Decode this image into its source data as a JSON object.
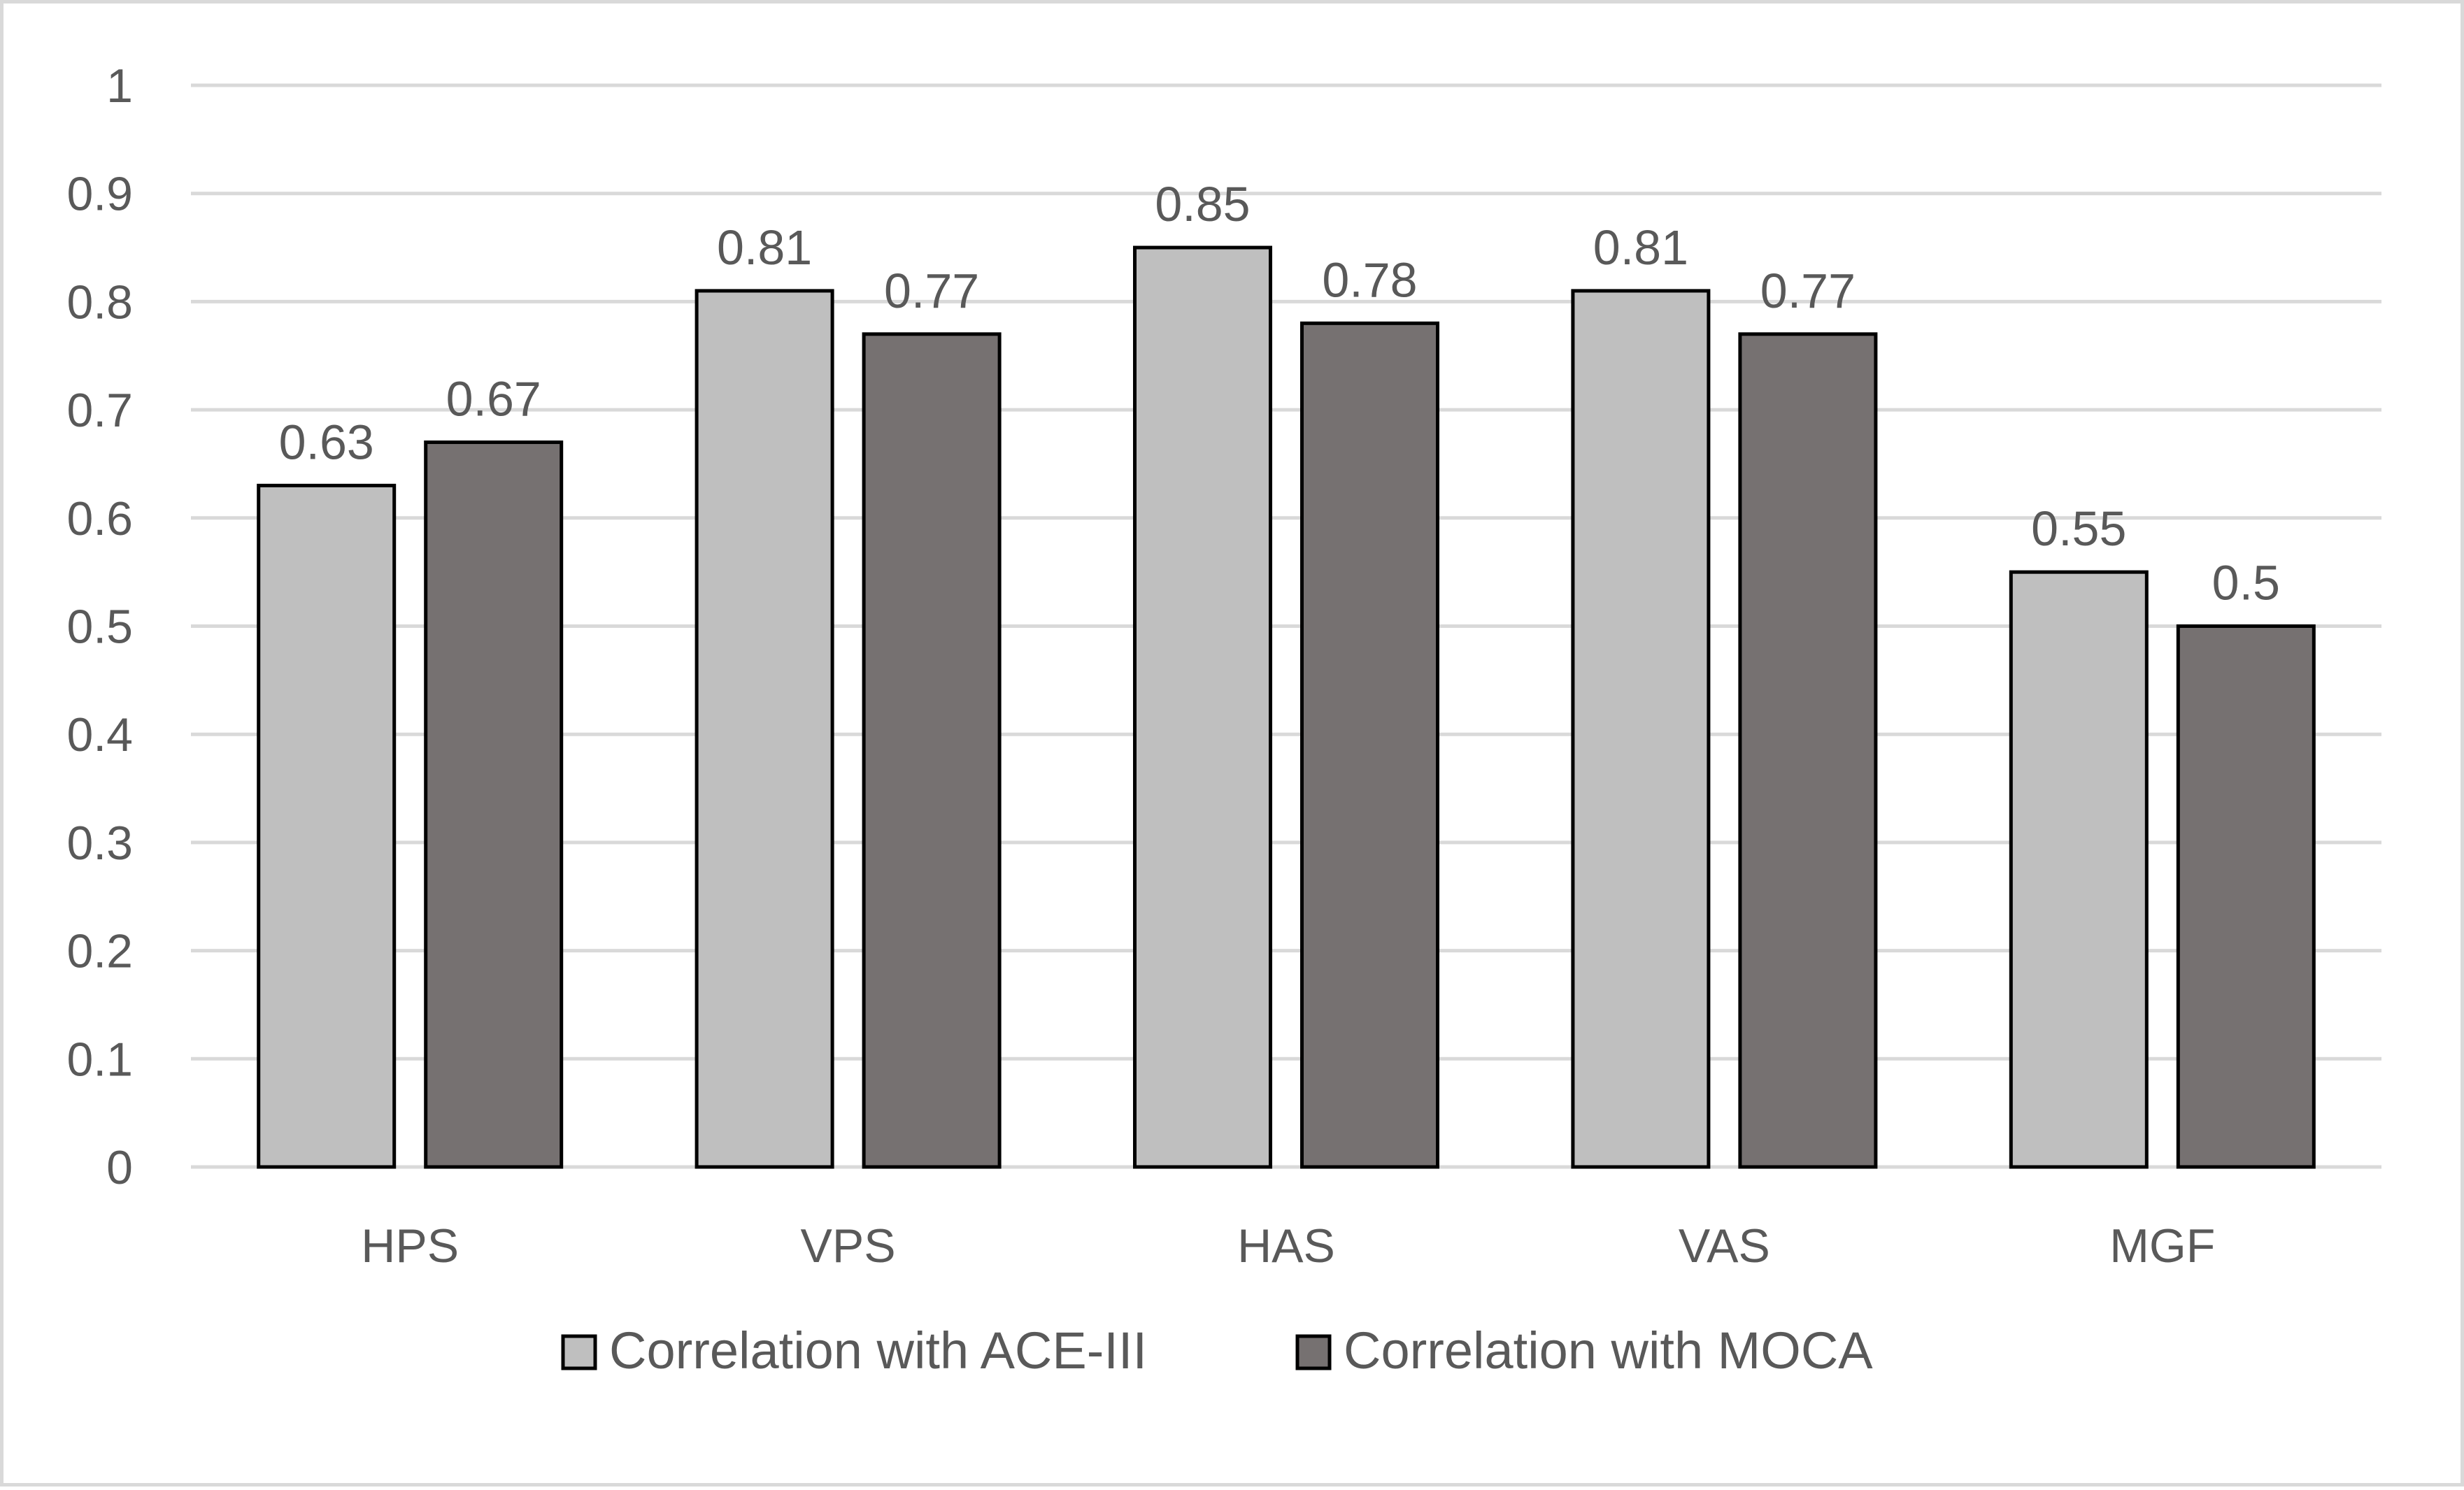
{
  "chart_data": {
    "type": "bar",
    "title": "",
    "xlabel": "",
    "ylabel": "",
    "categories": [
      "HPS",
      "VPS",
      "HAS",
      "VAS",
      "MGF"
    ],
    "series": [
      {
        "name": "Correlation with ACE-III",
        "values": [
          0.63,
          0.81,
          0.85,
          0.81,
          0.55
        ],
        "color": "#bfbfbf"
      },
      {
        "name": "Correlation with MOCA",
        "values": [
          0.67,
          0.77,
          0.78,
          0.77,
          0.5
        ],
        "color": "#767171"
      }
    ],
    "y_ticks": [
      "0",
      "0.1",
      "0.2",
      "0.3",
      "0.4",
      "0.5",
      "0.6",
      "0.7",
      "0.8",
      "0.9",
      "1"
    ],
    "ylim": [
      0,
      1
    ],
    "grid": true,
    "legend_position": "bottom",
    "data_labels": true,
    "colors": {
      "gridline": "#d9d9d9",
      "text": "#595959",
      "bar_outline": "#000000",
      "frame": "#d9d9d9"
    }
  }
}
